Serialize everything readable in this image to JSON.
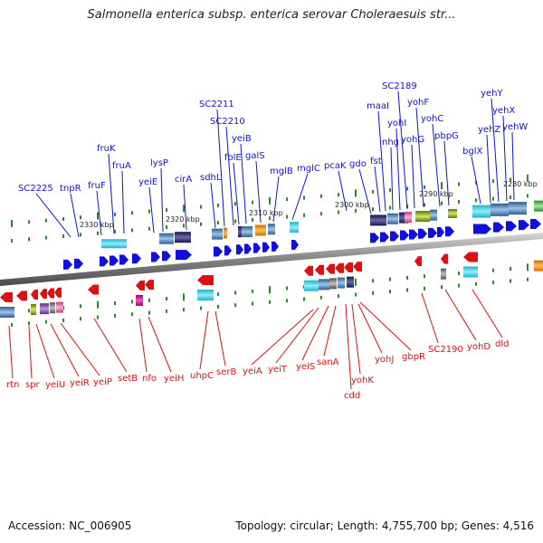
{
  "title": "Salmonella enterica subsp. enterica serovar Choleraesuis str...",
  "footer": {
    "accession": "Accession: NC_006905",
    "summary": "Topology: circular; Length: 4,755,700 bp; Genes: 4,516"
  },
  "colors": {
    "forward": "#1010dd",
    "reverse": "#e01010",
    "backbone": "#8a8a8a",
    "tick": "#2a8a2a"
  },
  "scale_ticks": [
    "2330 kbp",
    "2320 kbp",
    "2310 kbp",
    "2300 kbp",
    "2290 kbp",
    "2280 kbp"
  ],
  "top_genes": [
    "SC2225",
    "tnpR",
    "fruF",
    "fruK",
    "fruA",
    "yeiE",
    "lysP",
    "cirA",
    "sdhL",
    "SC2211",
    "SC2210",
    "folE",
    "yeiB",
    "galS",
    "mglB",
    "mglC",
    "pcaK",
    "gdo",
    "fst",
    "maaI",
    "nhg",
    "yohI",
    "SC2189",
    "yohG",
    "yohF",
    "yohC",
    "pbpG",
    "bglX",
    "yehZ",
    "yehY",
    "yehX",
    "yehW"
  ],
  "bottom_genes": [
    "rtn",
    "spr",
    "yeiU",
    "yeiR",
    "yeiP",
    "setB",
    "nfo",
    "yeiH",
    "uhpC",
    "serB",
    "yeiA",
    "yeiT",
    "yeiS",
    "sanA",
    "cdd",
    "yohK",
    "yohJ",
    "gbpR",
    "SC2190",
    "yohD",
    "dld"
  ]
}
